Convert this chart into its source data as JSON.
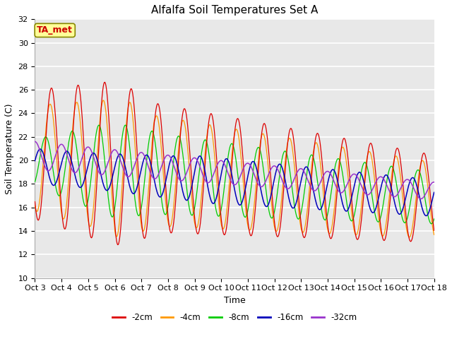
{
  "title": "Alfalfa Soil Temperatures Set A",
  "xlabel": "Time",
  "ylabel": "Soil Temperature (C)",
  "ylim": [
    10,
    32
  ],
  "yticks": [
    10,
    12,
    14,
    16,
    18,
    20,
    22,
    24,
    26,
    28,
    30,
    32
  ],
  "colors": {
    "-2cm": "#dd0000",
    "-4cm": "#ff9900",
    "-8cm": "#00cc00",
    "-16cm": "#0000bb",
    "-32cm": "#9933cc"
  },
  "annotation_text": "TA_met",
  "annotation_color": "#cc0000",
  "annotation_bg": "#ffff99",
  "plot_bg": "#e8e8e8",
  "fig_bg": "#ffffff",
  "grid_color": "#ffffff",
  "x_tick_labels": [
    "Oct 3",
    "Oct 4",
    "Oct 5",
    "Oct 6",
    "Oct 7",
    "Oct 8",
    "Oct 9",
    "Oct 10",
    "Oct 11",
    "Oct 12",
    "Oct 13",
    "Oct 14",
    "Oct 15",
    "Oct 16",
    "Oct 17",
    "Oct 18"
  ],
  "title_fontsize": 11,
  "axis_fontsize": 9,
  "tick_fontsize": 8
}
